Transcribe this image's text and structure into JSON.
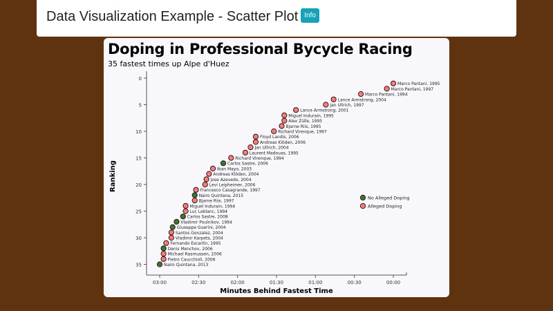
{
  "header": {
    "title": "Data Visualization Example - Scatter Plot",
    "info_label": "Info"
  },
  "card": {
    "title": "Doping in Professional Bycycle Racing",
    "subtitle": "35 fastest times up Alpe d'Huez"
  },
  "colors": {
    "doping": "#f08080",
    "no_doping": "#2e7d32",
    "stroke": "#3a1010"
  },
  "chart_data": {
    "type": "scatter",
    "title": "Doping in Professional Bycycle Racing",
    "subtitle": "35 fastest times up Alpe d'Huez",
    "xlabel": "Minutes Behind Fastest Time",
    "ylabel": "Ranking",
    "x_ticks": [
      "03:00",
      "02:30",
      "02:00",
      "01:30",
      "01:00",
      "00:30",
      "00:00"
    ],
    "y_ticks": [
      0,
      5,
      10,
      15,
      20,
      25,
      30,
      35
    ],
    "xlim_seconds": [
      190,
      0
    ],
    "ylim": [
      0,
      37
    ],
    "legend": [
      {
        "label": "No Alleged Doping",
        "color": "#2e7d32"
      },
      {
        "label": "Alleged Doping",
        "color": "#f08080"
      }
    ],
    "points": [
      {
        "rank": 1,
        "seconds_behind": 0,
        "label": "Marco Pantani, 1995",
        "doping": true
      },
      {
        "rank": 2,
        "seconds_behind": 5,
        "label": "Marco Pantani, 1997",
        "doping": true
      },
      {
        "rank": 3,
        "seconds_behind": 25,
        "label": "Marco Pantani, 1994",
        "doping": true
      },
      {
        "rank": 4,
        "seconds_behind": 46,
        "label": "Lance Armstrong, 2004",
        "doping": true
      },
      {
        "rank": 5,
        "seconds_behind": 52,
        "label": "Jan Ullrich, 1997",
        "doping": true
      },
      {
        "rank": 6,
        "seconds_behind": 75,
        "label": "Lance Armstrong, 2001",
        "doping": true
      },
      {
        "rank": 7,
        "seconds_behind": 84,
        "label": "Miguel Indurain, 1995",
        "doping": true
      },
      {
        "rank": 8,
        "seconds_behind": 84,
        "label": "Alex Zülle, 1995",
        "doping": true
      },
      {
        "rank": 9,
        "seconds_behind": 86,
        "label": "Bjarne Riis, 1995",
        "doping": true
      },
      {
        "rank": 10,
        "seconds_behind": 92,
        "label": "Richard Virenque, 1997",
        "doping": true
      },
      {
        "rank": 11,
        "seconds_behind": 106,
        "label": "Floyd Landis, 2006",
        "doping": true
      },
      {
        "rank": 12,
        "seconds_behind": 106,
        "label": "Andreas Klöden, 2006",
        "doping": true
      },
      {
        "rank": 13,
        "seconds_behind": 110,
        "label": "Jan Ullrich, 2004",
        "doping": true
      },
      {
        "rank": 14,
        "seconds_behind": 114,
        "label": "Laurent Madouas, 1995",
        "doping": true
      },
      {
        "rank": 15,
        "seconds_behind": 125,
        "label": "Richard Virenque, 1994",
        "doping": true
      },
      {
        "rank": 16,
        "seconds_behind": 131,
        "label": "Carlos Sastre, 2006",
        "doping": false
      },
      {
        "rank": 17,
        "seconds_behind": 139,
        "label": "Iban Mayo, 2003",
        "doping": true
      },
      {
        "rank": 18,
        "seconds_behind": 142,
        "label": "Andreas Klöden, 2004",
        "doping": true
      },
      {
        "rank": 19,
        "seconds_behind": 144,
        "label": "Jose Azevedo, 2004",
        "doping": true
      },
      {
        "rank": 20,
        "seconds_behind": 145,
        "label": "Levi Leipheimer, 2006",
        "doping": true
      },
      {
        "rank": 21,
        "seconds_behind": 152,
        "label": "Francesco Casagrande, 1997",
        "doping": true
      },
      {
        "rank": 22,
        "seconds_behind": 153,
        "label": "Nairo Quintana, 2015",
        "doping": false
      },
      {
        "rank": 23,
        "seconds_behind": 153,
        "label": "Bjarne Riis, 1997",
        "doping": true
      },
      {
        "rank": 24,
        "seconds_behind": 160,
        "label": "Miguel Indurain, 1994",
        "doping": true
      },
      {
        "rank": 25,
        "seconds_behind": 160,
        "label": "Luc Leblanc, 1994",
        "doping": true
      },
      {
        "rank": 26,
        "seconds_behind": 162,
        "label": "Carlos Sastre, 2008",
        "doping": false
      },
      {
        "rank": 27,
        "seconds_behind": 167,
        "label": "Vladimir Poulnikov, 1994",
        "doping": false
      },
      {
        "rank": 28,
        "seconds_behind": 170,
        "label": "Giuseppe Guerini, 2004",
        "doping": false
      },
      {
        "rank": 29,
        "seconds_behind": 171,
        "label": "Santos Gonzalez, 2004",
        "doping": true
      },
      {
        "rank": 30,
        "seconds_behind": 171,
        "label": "Vladimir Karpets, 2004",
        "doping": true
      },
      {
        "rank": 31,
        "seconds_behind": 175,
        "label": "Fernando Escartin, 1995",
        "doping": true
      },
      {
        "rank": 32,
        "seconds_behind": 177,
        "label": "Denis Menchov, 2006",
        "doping": false
      },
      {
        "rank": 33,
        "seconds_behind": 177,
        "label": "Michael Rasmussen, 2006",
        "doping": true
      },
      {
        "rank": 34,
        "seconds_behind": 177,
        "label": "Pietro Caucchioli, 2006",
        "doping": true
      },
      {
        "rank": 35,
        "seconds_behind": 180,
        "label": "Nairo Quintana, 2013",
        "doping": false
      }
    ]
  }
}
